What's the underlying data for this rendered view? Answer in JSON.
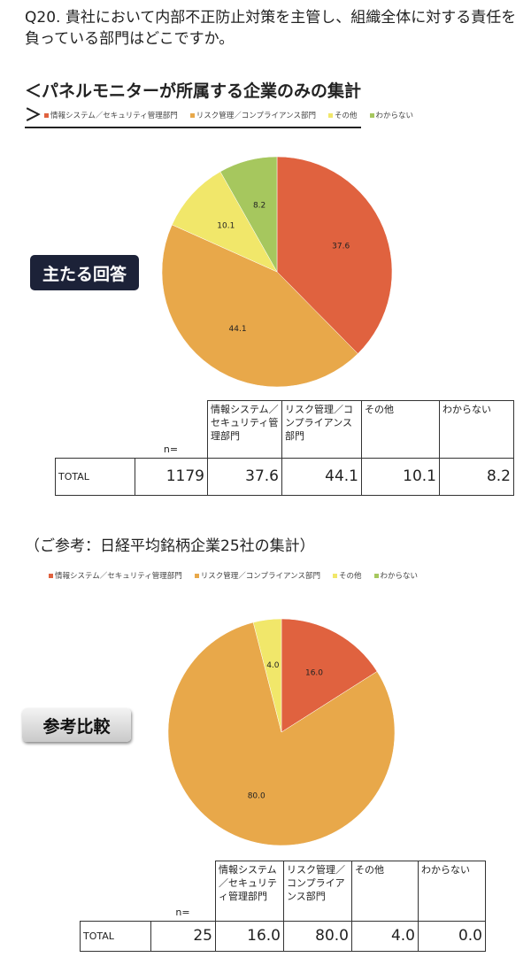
{
  "question": "Q20. 貴社において内部不正防止対策を主管し、組織全体に対する責任を負っている部門はどこですか。",
  "colors": {
    "info": "#e0623f",
    "risk": "#e8a84a",
    "other": "#f1e76a",
    "unknown": "#a6c75e"
  },
  "chart_data": [
    {
      "type": "pie",
      "title": "＜パネルモニターが所属する企業のみの集計＞",
      "badge": "主たる回答",
      "legend_position": "top",
      "categories": [
        "情報システム／セキュリティ管理部門",
        "リスク管理／コンプライアンス部門",
        "その他",
        "わからない"
      ],
      "values": [
        37.6,
        44.1,
        10.1,
        8.2
      ],
      "labels": [
        "37.6",
        "44.1",
        "10.1",
        "8.2"
      ],
      "table": {
        "n_label": "n=",
        "headers": [
          "情報システム／セキュリティ管理部門",
          "リスク管理／コンプライアンス部門",
          "その他",
          "わからない"
        ],
        "row_label": "TOTAL",
        "n": "1179",
        "cells": [
          "37.6",
          "44.1",
          "10.1",
          "8.2"
        ]
      }
    },
    {
      "type": "pie",
      "title": "（ご参考：日経平均銘柄企業25社の集計）",
      "badge": "参考比較",
      "legend_position": "top",
      "categories": [
        "情報システム／セキュリティ管理部門",
        "リスク管理／コンプライアンス部門",
        "その他",
        "わからない"
      ],
      "values": [
        16.0,
        80.0,
        4.0,
        0.0
      ],
      "labels": [
        "16.0",
        "80.0",
        "4.0",
        "0.0"
      ],
      "table": {
        "n_label": "n=",
        "headers": [
          "情報システム／セキュリティ管理部門",
          "リスク管理／コンプライアンス部門",
          "その他",
          "わからない"
        ],
        "row_label": "TOTAL",
        "n": "25",
        "cells": [
          "16.0",
          "80.0",
          "4.0",
          "0.0"
        ]
      }
    }
  ]
}
